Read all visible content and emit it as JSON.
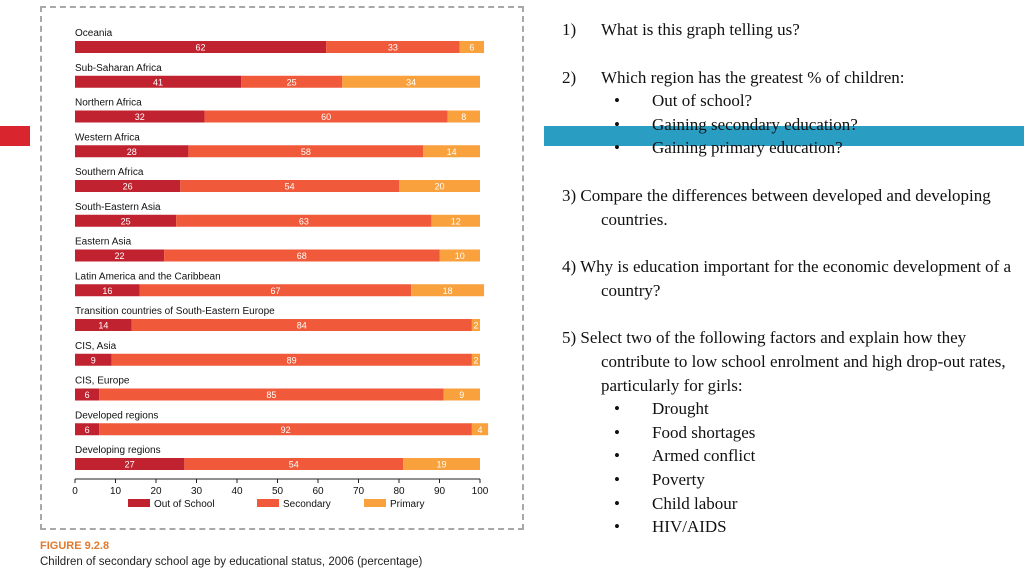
{
  "chart_data": {
    "type": "bar",
    "orientation": "horizontal",
    "stacked": true,
    "categories": [
      "Oceania",
      "Sub-Saharan Africa",
      "Northern Africa",
      "Western Africa",
      "Southern Africa",
      "South-Eastern Asia",
      "Eastern Asia",
      "Latin America and the Caribbean",
      "Transition countries of South-Eastern Europe",
      "CIS, Asia",
      "CIS, Europe",
      "Developed regions",
      "Developing regions"
    ],
    "series": [
      {
        "name": "Out of School",
        "color": "#c0232f",
        "values": [
          62,
          41,
          32,
          28,
          26,
          25,
          22,
          16,
          14,
          9,
          6,
          6,
          27
        ]
      },
      {
        "name": "Secondary",
        "color": "#f05a3a",
        "values": [
          33,
          25,
          60,
          58,
          54,
          63,
          68,
          67,
          84,
          89,
          85,
          92,
          54
        ]
      },
      {
        "name": "Primary",
        "color": "#f9a13c",
        "values": [
          6,
          34,
          8,
          14,
          20,
          12,
          10,
          18,
          2,
          2,
          9,
          4,
          19
        ]
      }
    ],
    "xlim": [
      0,
      100
    ],
    "xticks": [
      0,
      10,
      20,
      30,
      40,
      50,
      60,
      70,
      80,
      90,
      100
    ],
    "legend": "bottom",
    "grid": false
  },
  "figure": {
    "label": "FIGURE 9.2.8",
    "caption": "Children of secondary school age by educational status, 2006 (percentage)"
  },
  "questions": {
    "q1": {
      "num": "1)",
      "text": "What is this graph telling us?"
    },
    "q2": {
      "num": "2)",
      "text": "Which region has the greatest % of children:",
      "items": [
        "Out of school?",
        "Gaining secondary education?",
        "Gaining primary education?"
      ]
    },
    "q3": {
      "text": "3) Compare the differences between developed and developing countries."
    },
    "q4": {
      "text": "4) Why is education important for the economic development of a country?"
    },
    "q5": {
      "text": "5) Select two of the following factors and explain how they contribute to low school enrolment and high drop-out rates, particularly for girls:",
      "items": [
        "Drought",
        "Food shortages",
        "Armed conflict",
        "Poverty",
        "Child labour",
        "HIV/AIDS"
      ]
    },
    "bullet": "•"
  },
  "colors": {
    "left_accent": "#d9262e",
    "right_accent": "#2a9ec2",
    "figure_label": "#e07a2e"
  }
}
